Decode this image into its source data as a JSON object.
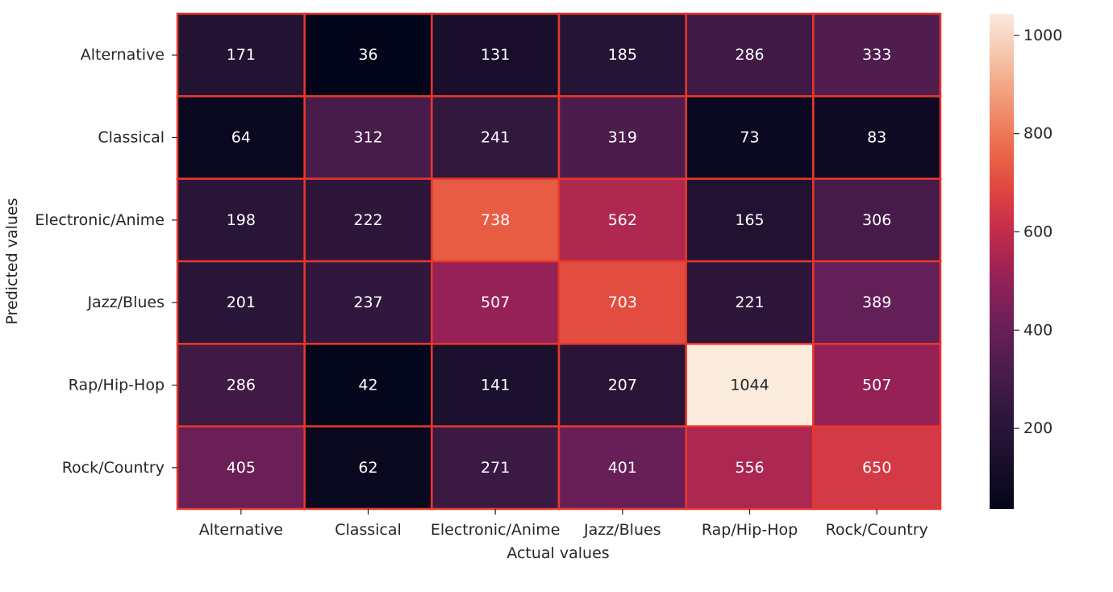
{
  "chart_data": {
    "type": "heatmap",
    "x_categories": [
      "Alternative",
      "Classical",
      "Electronic/Anime",
      "Jazz/Blues",
      "Rap/Hip-Hop",
      "Rock/Country"
    ],
    "y_categories": [
      "Alternative",
      "Classical",
      "Electronic/Anime",
      "Jazz/Blues",
      "Rap/Hip-Hop",
      "Rock/Country"
    ],
    "values": [
      [
        171,
        36,
        131,
        185,
        286,
        333
      ],
      [
        64,
        312,
        241,
        319,
        73,
        83
      ],
      [
        198,
        222,
        738,
        562,
        165,
        306
      ],
      [
        201,
        237,
        507,
        703,
        221,
        389
      ],
      [
        286,
        42,
        141,
        207,
        1044,
        507
      ],
      [
        405,
        62,
        271,
        401,
        556,
        650
      ]
    ],
    "xlabel": "Actual values",
    "ylabel": "Predicted values",
    "colormap": "rocket",
    "cell_border_color": "#e8372a",
    "colorbar": {
      "range": [
        36,
        1044
      ],
      "ticks": [
        200,
        400,
        600,
        800,
        1000
      ],
      "tick_labels": [
        "200",
        "400",
        "600",
        "800",
        "1000"
      ]
    }
  }
}
